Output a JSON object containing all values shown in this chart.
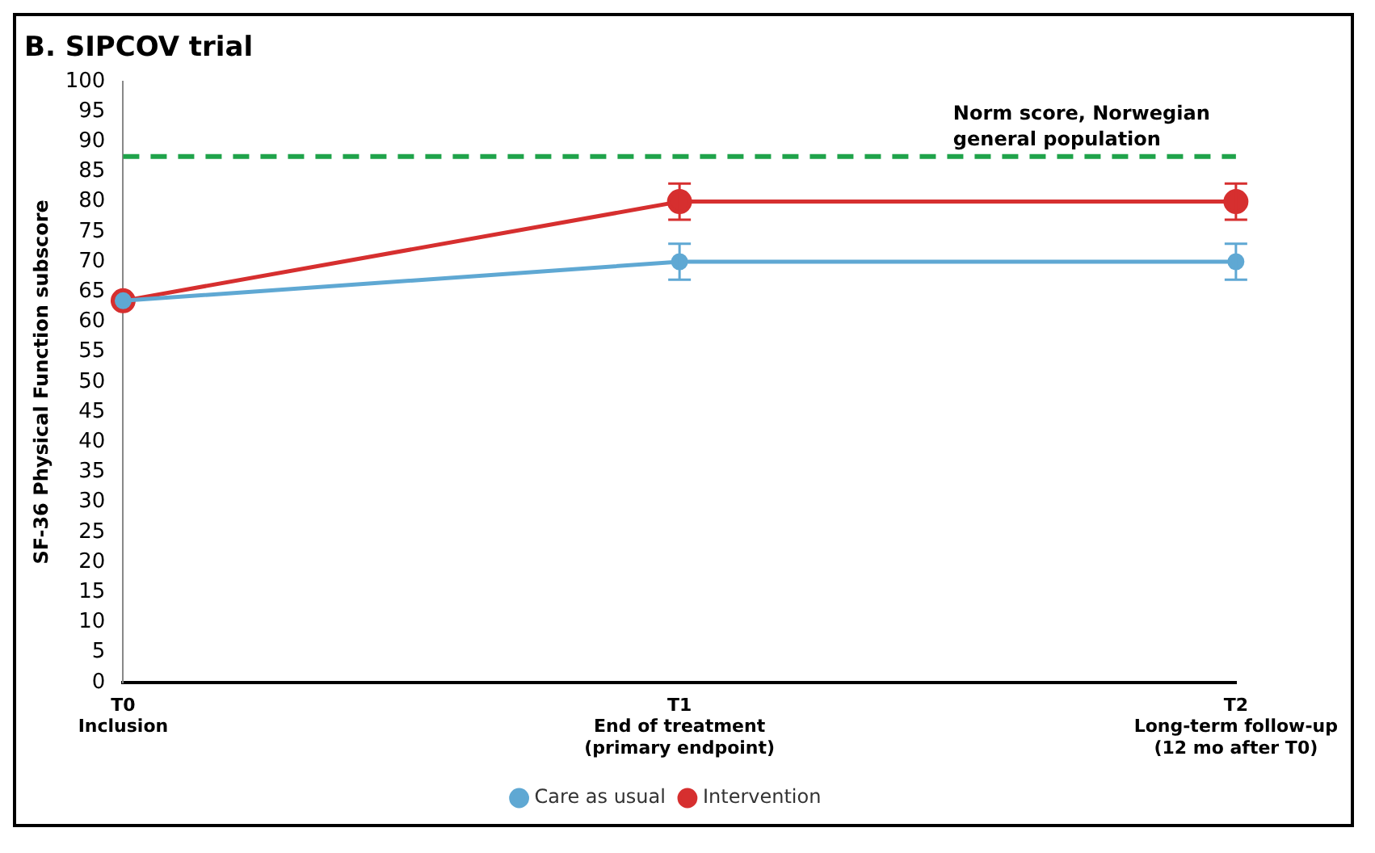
{
  "chart_data": {
    "type": "line",
    "title": "B. SIPCOV trial",
    "ylabel": "SF-36 Physical Function subscore",
    "categories": [
      "T0\nInclusion",
      "T1\nEnd of treatment\n(primary endpoint)",
      "T2\nLong-term follow-up\n(12 mo after T0)"
    ],
    "series": [
      {
        "name": "Care as usual",
        "color": "#5fa8d3",
        "values": [
          63.5,
          70,
          70
        ],
        "errors": [
          null,
          3,
          3
        ]
      },
      {
        "name": "Intervention",
        "color": "#d62f2f",
        "values": [
          63.5,
          80,
          80
        ],
        "errors": [
          null,
          3,
          3
        ]
      }
    ],
    "ylim": [
      0,
      100
    ],
    "yticks": [
      0,
      5,
      10,
      15,
      20,
      25,
      30,
      35,
      40,
      45,
      50,
      55,
      60,
      65,
      70,
      75,
      80,
      85,
      90,
      95,
      100
    ],
    "ref_lines": [
      {
        "axis": "y",
        "value": 87.5,
        "label": "Norm score, Norwegian\ngeneral population",
        "color": "#1fa34a",
        "line_style": "dashed"
      }
    ],
    "grid": false,
    "legend": "bottom",
    "marker": "circle",
    "line_style": "solid"
  }
}
